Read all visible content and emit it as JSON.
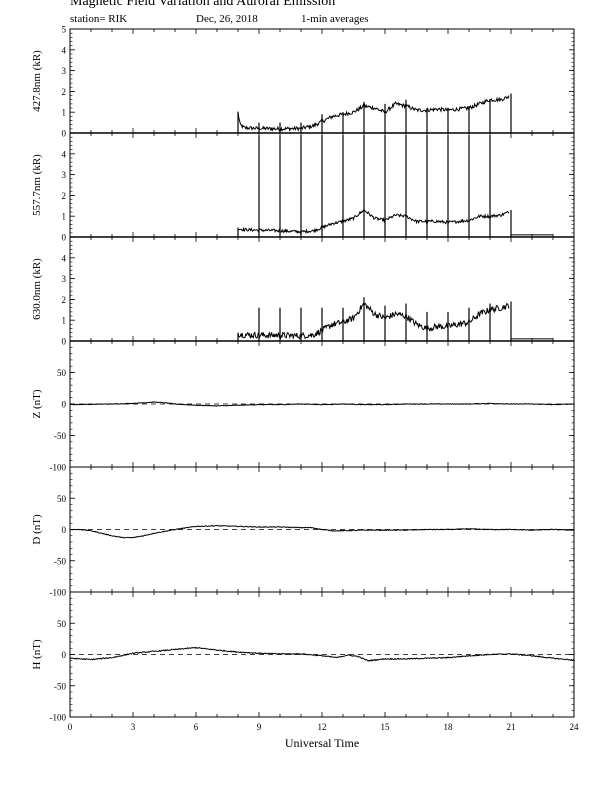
{
  "header": {
    "title": "Magnetic Field Variation and Auroral Emission",
    "station": "station= RIK",
    "date": "Dec, 26, 2018",
    "averaging": "1-min averages"
  },
  "chart_data": [
    {
      "type": "line",
      "ylabel": "427.8nm (kR)",
      "xlim": [
        0,
        24
      ],
      "ylim": [
        0,
        5
      ],
      "yticks": [
        "0",
        "1",
        "2",
        "3",
        "4",
        "5"
      ],
      "zero_line": "solid",
      "profile": [
        [
          8.0,
          1.0
        ],
        [
          8.1,
          0.4
        ],
        [
          8.3,
          0.25
        ],
        [
          9,
          0.22
        ],
        [
          10,
          0.2
        ],
        [
          11,
          0.22
        ],
        [
          11.6,
          0.35
        ],
        [
          12,
          0.55
        ],
        [
          12.5,
          0.8
        ],
        [
          13,
          0.9
        ],
        [
          13.5,
          1.0
        ],
        [
          14,
          1.3
        ],
        [
          14.5,
          1.2
        ],
        [
          15,
          1.0
        ],
        [
          15.5,
          1.4
        ],
        [
          16,
          1.3
        ],
        [
          16.5,
          1.1
        ],
        [
          17,
          1.1
        ],
        [
          17.5,
          1.15
        ],
        [
          18,
          1.1
        ],
        [
          18.5,
          1.15
        ],
        [
          19,
          1.2
        ],
        [
          19.5,
          1.4
        ],
        [
          20,
          1.6
        ],
        [
          20.5,
          1.6
        ],
        [
          20.9,
          1.75
        ]
      ],
      "noise": 0.09,
      "spikes": [
        [
          8,
          1.0
        ],
        [
          9,
          0.5
        ],
        [
          10,
          0.5
        ],
        [
          11,
          0.5
        ],
        [
          12,
          0.9
        ],
        [
          13,
          1.0
        ],
        [
          14,
          1.5
        ],
        [
          15,
          1.4
        ],
        [
          16,
          1.6
        ],
        [
          17,
          1.2
        ],
        [
          18,
          1.2
        ],
        [
          19,
          1.3
        ],
        [
          20,
          1.6
        ],
        [
          21,
          1.9
        ]
      ]
    },
    {
      "type": "line",
      "ylabel": "557.7nm (kR)",
      "xlim": [
        0,
        24
      ],
      "ylim": [
        0,
        5
      ],
      "yticks": [
        "0",
        "1",
        "2",
        "3",
        "4"
      ],
      "zero_line": "solid",
      "profile": [
        [
          8.0,
          0.4
        ],
        [
          8.3,
          0.35
        ],
        [
          9,
          0.33
        ],
        [
          10,
          0.3
        ],
        [
          11,
          0.25
        ],
        [
          11.6,
          0.3
        ],
        [
          12,
          0.45
        ],
        [
          12.5,
          0.65
        ],
        [
          13,
          0.75
        ],
        [
          13.5,
          0.9
        ],
        [
          14,
          1.3
        ],
        [
          14.5,
          0.9
        ],
        [
          15,
          0.8
        ],
        [
          15.5,
          1.05
        ],
        [
          16,
          1.0
        ],
        [
          16.5,
          0.75
        ],
        [
          17,
          0.75
        ],
        [
          17.5,
          0.75
        ],
        [
          18,
          0.7
        ],
        [
          18.5,
          0.75
        ],
        [
          19,
          0.8
        ],
        [
          19.5,
          1.0
        ],
        [
          20,
          1.0
        ],
        [
          20.5,
          1.05
        ],
        [
          20.9,
          1.2
        ]
      ],
      "noise": 0.07,
      "spikes": [
        [
          8,
          0.45
        ],
        [
          9,
          4.9
        ],
        [
          10,
          4.9
        ],
        [
          11,
          4.9
        ],
        [
          12,
          4.9
        ],
        [
          13,
          4.9
        ],
        [
          14,
          4.9
        ],
        [
          15,
          4.9
        ],
        [
          16,
          4.9
        ],
        [
          17,
          4.9
        ],
        [
          18,
          4.9
        ],
        [
          19,
          4.9
        ],
        [
          20,
          4.9
        ],
        [
          21,
          1.3
        ]
      ],
      "tail": [
        [
          21.0,
          0.1
        ],
        [
          23.0,
          0.1
        ]
      ]
    },
    {
      "type": "line",
      "ylabel": "630.0nm (kR)",
      "xlim": [
        0,
        24
      ],
      "ylim": [
        0,
        5
      ],
      "yticks": [
        "0",
        "1",
        "2",
        "3",
        "4"
      ],
      "zero_line": "solid",
      "profile": [
        [
          8.0,
          0.35
        ],
        [
          8.3,
          0.3
        ],
        [
          9,
          0.28
        ],
        [
          10,
          0.27
        ],
        [
          11,
          0.25
        ],
        [
          11.6,
          0.3
        ],
        [
          12,
          0.5
        ],
        [
          12.5,
          0.8
        ],
        [
          13,
          0.9
        ],
        [
          13.5,
          1.1
        ],
        [
          14,
          1.8
        ],
        [
          14.5,
          1.3
        ],
        [
          15,
          1.1
        ],
        [
          15.5,
          1.3
        ],
        [
          16,
          1.2
        ],
        [
          16.5,
          0.8
        ],
        [
          17,
          0.6
        ],
        [
          17.5,
          0.7
        ],
        [
          18,
          0.7
        ],
        [
          18.5,
          0.8
        ],
        [
          19,
          0.9
        ],
        [
          19.5,
          1.3
        ],
        [
          20,
          1.5
        ],
        [
          20.5,
          1.6
        ],
        [
          20.9,
          1.7
        ]
      ],
      "noise": 0.15,
      "spikes": [
        [
          8,
          0.4
        ],
        [
          9,
          1.6
        ],
        [
          10,
          1.6
        ],
        [
          11,
          1.6
        ],
        [
          12,
          1.6
        ],
        [
          13,
          1.6
        ],
        [
          14,
          2.1
        ],
        [
          15,
          1.7
        ],
        [
          16,
          1.8
        ],
        [
          17,
          1.4
        ],
        [
          18,
          1.4
        ],
        [
          19,
          1.6
        ],
        [
          20,
          1.8
        ],
        [
          21,
          1.9
        ]
      ],
      "tail": [
        [
          21.0,
          0.1
        ],
        [
          23.0,
          0.1
        ]
      ]
    },
    {
      "type": "line",
      "ylabel": "Z (nT)",
      "xlim": [
        0,
        24
      ],
      "ylim": [
        -100,
        100
      ],
      "yticks": [
        "-100",
        "-50",
        "0",
        "50"
      ],
      "zero_line": "dashed",
      "profile": [
        [
          0,
          -1
        ],
        [
          2,
          0
        ],
        [
          3,
          1
        ],
        [
          4,
          3
        ],
        [
          4.5,
          2
        ],
        [
          5,
          0
        ],
        [
          6,
          -2
        ],
        [
          7,
          -3
        ],
        [
          8,
          -2
        ],
        [
          9,
          -1
        ],
        [
          10,
          -1
        ],
        [
          11,
          0
        ],
        [
          12,
          -1
        ],
        [
          13,
          0
        ],
        [
          14,
          -1
        ],
        [
          15,
          -1
        ],
        [
          16,
          0
        ],
        [
          17,
          0
        ],
        [
          18,
          0
        ],
        [
          19,
          0
        ],
        [
          20,
          1
        ],
        [
          21,
          0
        ],
        [
          22,
          0
        ],
        [
          23,
          -1
        ],
        [
          24,
          0
        ]
      ],
      "noise": 0.5
    },
    {
      "type": "line",
      "ylabel": "D (nT)",
      "xlim": [
        0,
        24
      ],
      "ylim": [
        -100,
        100
      ],
      "yticks": [
        "-100",
        "-50",
        "0",
        "50"
      ],
      "zero_line": "dashed",
      "profile": [
        [
          0,
          0
        ],
        [
          0.5,
          0
        ],
        [
          1,
          -2
        ],
        [
          2,
          -10
        ],
        [
          2.5,
          -13
        ],
        [
          3,
          -13
        ],
        [
          3.5,
          -10
        ],
        [
          4,
          -6
        ],
        [
          5,
          0
        ],
        [
          6,
          5
        ],
        [
          7,
          6
        ],
        [
          8,
          5
        ],
        [
          9,
          4
        ],
        [
          10,
          4
        ],
        [
          11,
          3
        ],
        [
          11.5,
          3
        ],
        [
          12,
          0
        ],
        [
          12.5,
          -2
        ],
        [
          13,
          -2
        ],
        [
          14,
          -1
        ],
        [
          15,
          -1
        ],
        [
          16,
          -1
        ],
        [
          17,
          0
        ],
        [
          18,
          0
        ],
        [
          19,
          1
        ],
        [
          20,
          0
        ],
        [
          21,
          0
        ],
        [
          22,
          -1
        ],
        [
          23,
          0
        ],
        [
          24,
          -1
        ]
      ],
      "noise": 0.6
    },
    {
      "type": "line",
      "ylabel": "H (nT)",
      "xlim": [
        0,
        24
      ],
      "ylim": [
        -100,
        100
      ],
      "yticks": [
        "-100",
        "-50",
        "0",
        "50"
      ],
      "zero_line": "dashed",
      "profile": [
        [
          0,
          -6
        ],
        [
          1,
          -8
        ],
        [
          2,
          -5
        ],
        [
          3,
          2
        ],
        [
          4,
          5
        ],
        [
          5,
          8
        ],
        [
          6,
          11
        ],
        [
          7,
          7
        ],
        [
          8,
          4
        ],
        [
          9,
          2
        ],
        [
          10,
          1
        ],
        [
          11,
          1
        ],
        [
          12,
          -2
        ],
        [
          12.7,
          -5
        ],
        [
          13.2,
          -1
        ],
        [
          13.7,
          -3
        ],
        [
          14.2,
          -10
        ],
        [
          15,
          -7
        ],
        [
          16,
          -7
        ],
        [
          17,
          -6
        ],
        [
          18,
          -5
        ],
        [
          19,
          -2
        ],
        [
          20,
          0
        ],
        [
          21,
          1
        ],
        [
          22,
          -2
        ],
        [
          23,
          -6
        ],
        [
          24,
          -9
        ]
      ],
      "noise": 0.8
    }
  ],
  "x_axis": {
    "label": "Universal Time",
    "ticks": [
      "0",
      "3",
      "6",
      "9",
      "12",
      "15",
      "18",
      "21",
      "24"
    ]
  }
}
